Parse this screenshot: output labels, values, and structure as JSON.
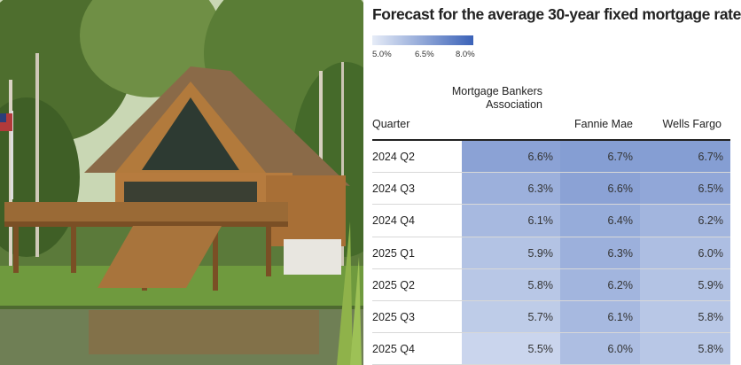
{
  "chart_data": {
    "type": "table",
    "title": "Forecast for the average 30-year fixed mortgage rate",
    "legend": {
      "ticks": [
        "5.0%",
        "6.5%",
        "8.0%"
      ],
      "min": 5.0,
      "max": 8.0,
      "color_low": "#e6ecf7",
      "color_high": "#3b62b8"
    },
    "row_header": "Quarter",
    "columns": [
      "Mortgage Bankers Association",
      "Fannie Mae",
      "Wells Fargo"
    ],
    "rows": [
      {
        "quarter": "2024 Q2",
        "values": [
          "6.6%",
          "6.7%",
          "6.7%"
        ]
      },
      {
        "quarter": "2024 Q3",
        "values": [
          "6.3%",
          "6.6%",
          "6.5%"
        ]
      },
      {
        "quarter": "2024 Q4",
        "values": [
          "6.1%",
          "6.4%",
          "6.2%"
        ]
      },
      {
        "quarter": "2025 Q1",
        "values": [
          "5.9%",
          "6.3%",
          "6.0%"
        ]
      },
      {
        "quarter": "2025 Q2",
        "values": [
          "5.8%",
          "6.2%",
          "5.9%"
        ]
      },
      {
        "quarter": "2025 Q3",
        "values": [
          "5.7%",
          "6.1%",
          "5.8%"
        ]
      },
      {
        "quarter": "2025 Q4",
        "values": [
          "5.5%",
          "6.0%",
          "5.8%"
        ]
      }
    ]
  }
}
